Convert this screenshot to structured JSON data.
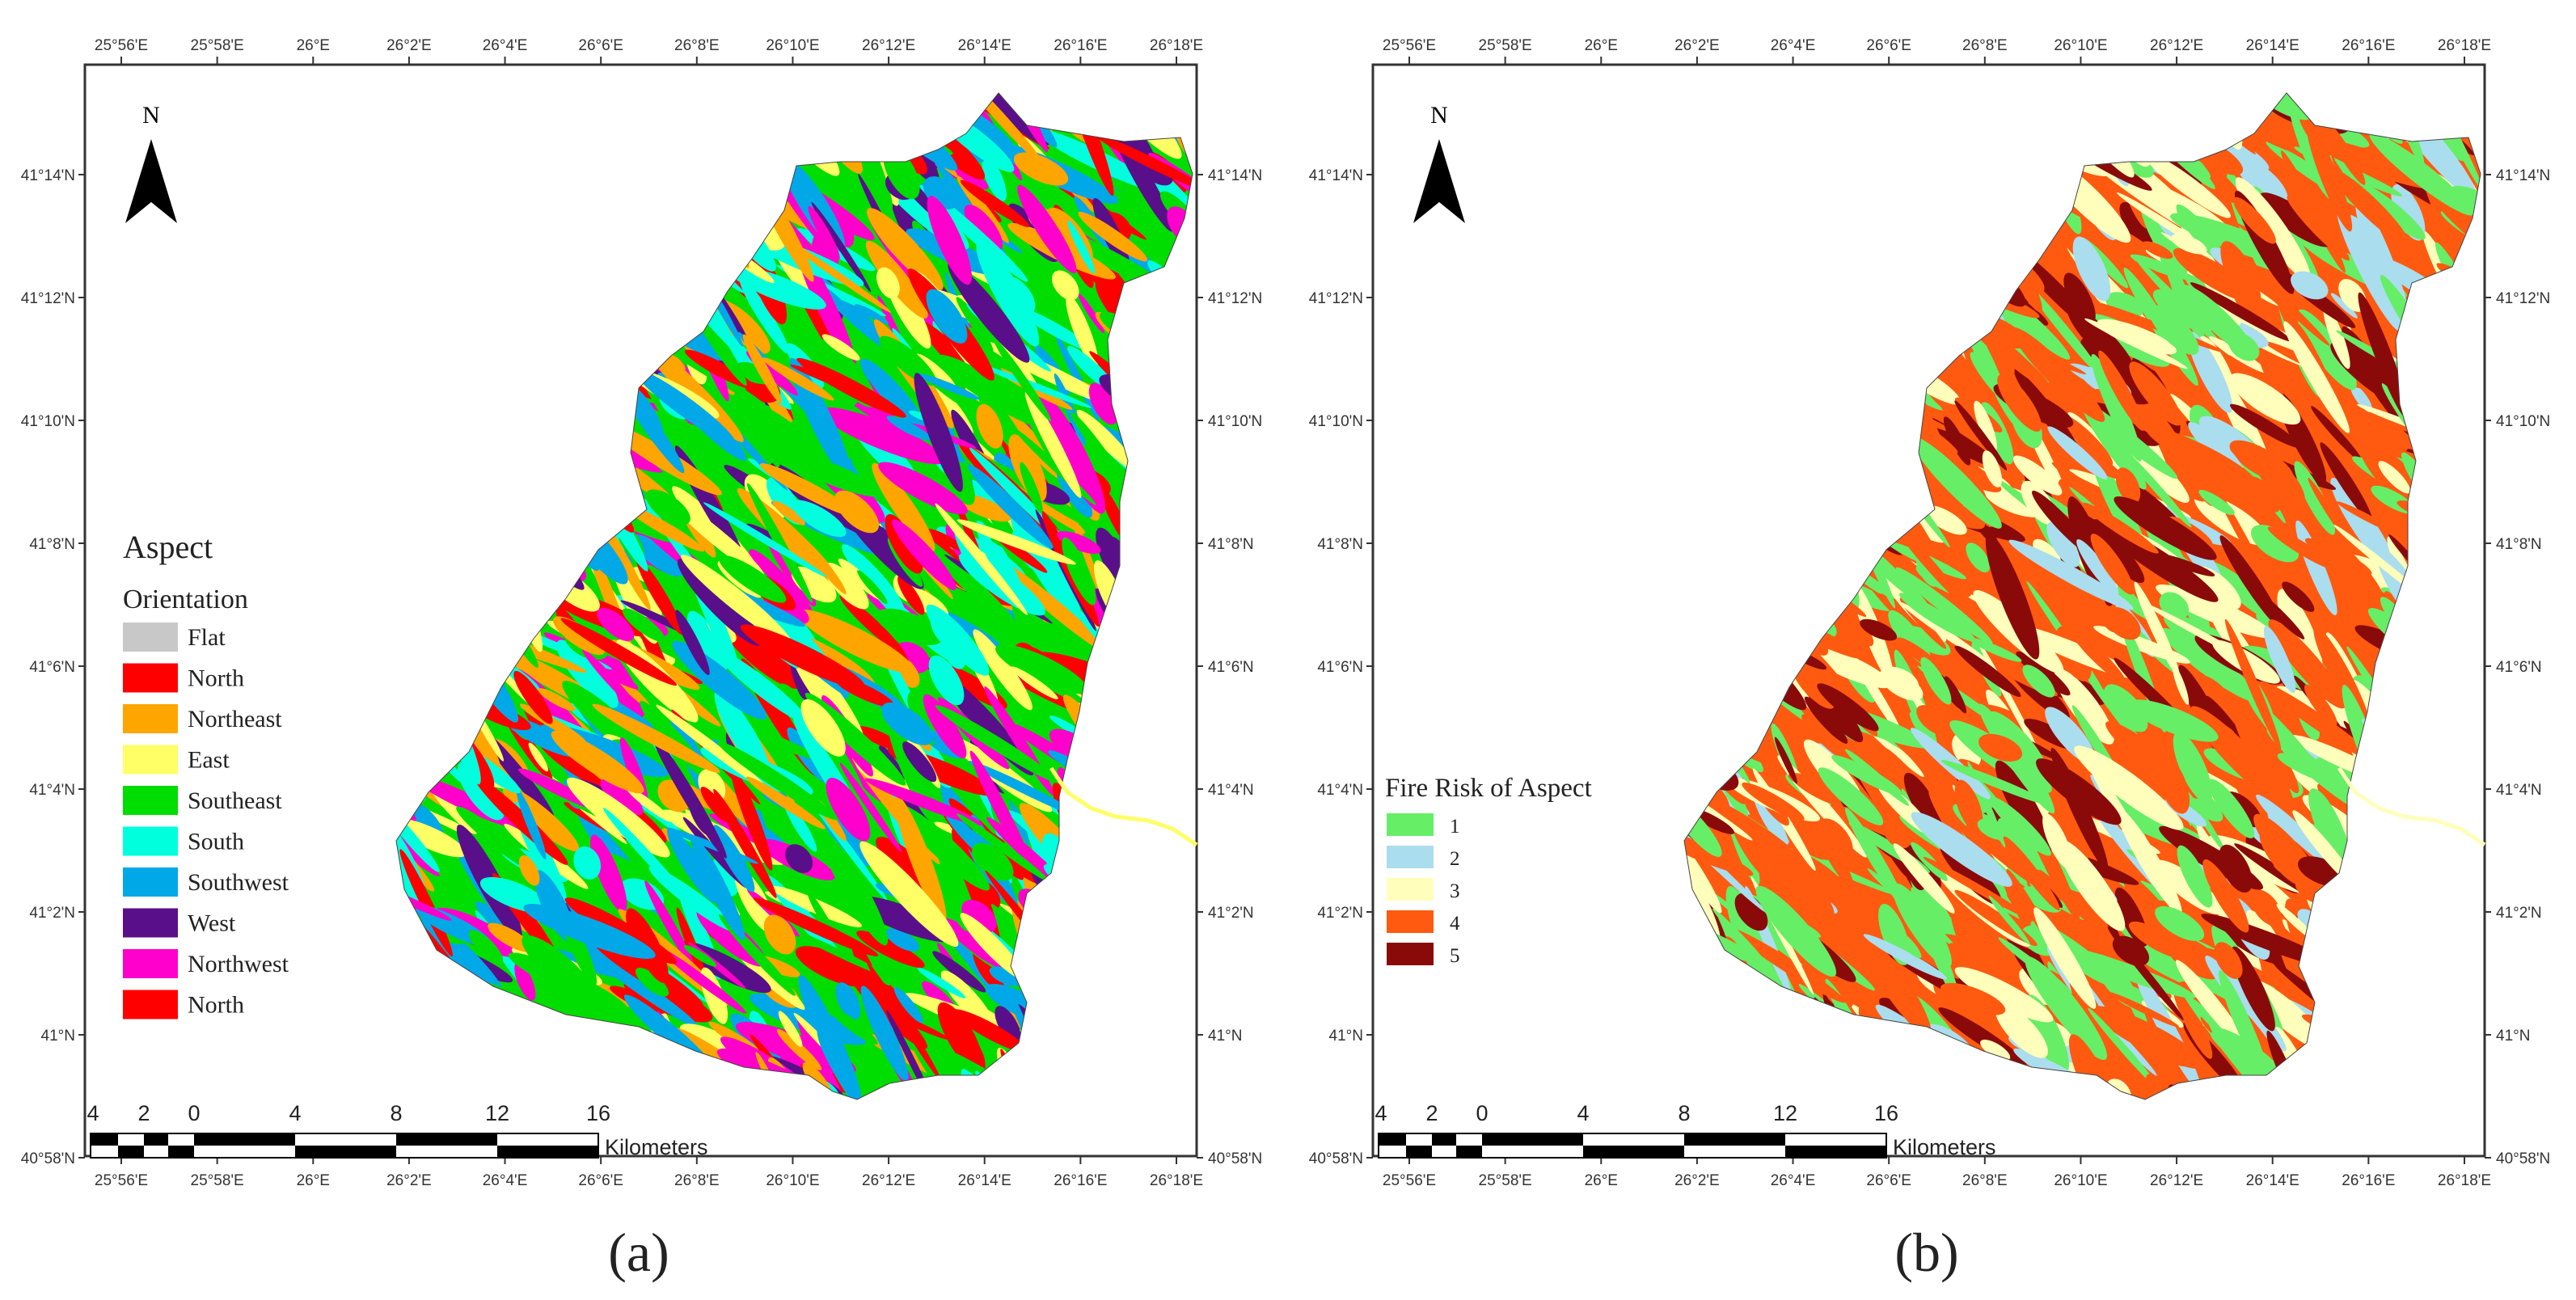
{
  "panels": [
    {
      "id": "a",
      "caption": "(a)",
      "north_label": "N",
      "legend": {
        "title": "Aspect",
        "subtitle": "Orientation",
        "items": [
          {
            "label": "Flat",
            "color": "#c8c8c8"
          },
          {
            "label": "North",
            "color": "#ff0000"
          },
          {
            "label": "Northeast",
            "color": "#ffa500"
          },
          {
            "label": "East",
            "color": "#ffff66"
          },
          {
            "label": "Southeast",
            "color": "#00dd00"
          },
          {
            "label": "South",
            "color": "#00ffdd"
          },
          {
            "label": "Southwest",
            "color": "#00a8e8"
          },
          {
            "label": "West",
            "color": "#5a0f8a"
          },
          {
            "label": "Northwest",
            "color": "#ff00cc"
          },
          {
            "label": "North",
            "color": "#ff0000"
          }
        ]
      },
      "scale_bar": {
        "labels": [
          "4",
          "2",
          "0",
          "4",
          "8",
          "12",
          "16"
        ],
        "unit": "Kilometers"
      }
    },
    {
      "id": "b",
      "caption": "(b)",
      "north_label": "N",
      "legend": {
        "title": "Fire Risk of Aspect",
        "subtitle": "",
        "items": [
          {
            "label": "1",
            "color": "#66ee66"
          },
          {
            "label": "2",
            "color": "#aaddee"
          },
          {
            "label": "3",
            "color": "#ffffbb"
          },
          {
            "label": "4",
            "color": "#ff5a10"
          },
          {
            "label": "5",
            "color": "#8a0a0a"
          }
        ]
      },
      "scale_bar": {
        "labels": [
          "4",
          "2",
          "0",
          "4",
          "8",
          "12",
          "16"
        ],
        "unit": "Kilometers"
      }
    }
  ],
  "x_ticks": [
    "25°56'E",
    "25°58'E",
    "26°E",
    "26°2'E",
    "26°4'E",
    "26°6'E",
    "26°8'E",
    "26°10'E",
    "26°12'E",
    "26°14'E",
    "26°16'E",
    "26°18'E"
  ],
  "y_ticks": [
    "41°14'N",
    "41°12'N",
    "41°10'N",
    "41°8'N",
    "41°6'N",
    "41°4'N",
    "41°2'N",
    "41°N",
    "40°58'N"
  ]
}
